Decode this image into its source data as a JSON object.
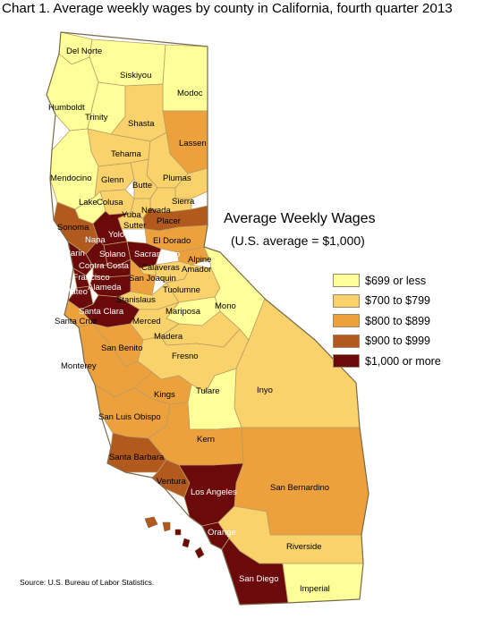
{
  "title": "Chart 1. Average weekly wages by county in California, fourth quarter 2013",
  "legend": {
    "title": "Average Weekly Wages",
    "subtitle": "(U.S. average = $1,000)",
    "items": [
      {
        "label": "$699 or less",
        "color": "#ffff99"
      },
      {
        "label": "$700 to $799",
        "color": "#f9d26b"
      },
      {
        "label": "$800 to $899",
        "color": "#eca13c"
      },
      {
        "label": "$900 to $999",
        "color": "#b2591e"
      },
      {
        "label": "$1,000 or more",
        "color": "#6b0a0a"
      }
    ]
  },
  "source": "Source: U.S. Bureau of Labor Statistics.",
  "counties": [
    {
      "name": "Del Norte",
      "class": 0
    },
    {
      "name": "Siskiyou",
      "class": 0
    },
    {
      "name": "Modoc",
      "class": 0
    },
    {
      "name": "Humboldt",
      "class": 0
    },
    {
      "name": "Trinity",
      "class": 0
    },
    {
      "name": "Shasta",
      "class": 1
    },
    {
      "name": "Lassen",
      "class": 2
    },
    {
      "name": "Tehama",
      "class": 1
    },
    {
      "name": "Plumas",
      "class": 1
    },
    {
      "name": "Mendocino",
      "class": 0
    },
    {
      "name": "Glenn",
      "class": 1
    },
    {
      "name": "Butte",
      "class": 1
    },
    {
      "name": "Sierra",
      "class": 1
    },
    {
      "name": "Lake",
      "class": 0
    },
    {
      "name": "Colusa",
      "class": 1
    },
    {
      "name": "Nevada",
      "class": 1
    },
    {
      "name": "Yuba",
      "class": 1
    },
    {
      "name": "Sutter",
      "class": 1
    },
    {
      "name": "Placer",
      "class": 3
    },
    {
      "name": "Sonoma",
      "class": 3
    },
    {
      "name": "Yolo",
      "class": 4
    },
    {
      "name": "Napa",
      "class": 4
    },
    {
      "name": "El Dorado",
      "class": 2
    },
    {
      "name": "Marin",
      "class": 4
    },
    {
      "name": "Solano",
      "class": 4
    },
    {
      "name": "Sacramento",
      "class": 4
    },
    {
      "name": "Alpine",
      "class": 2
    },
    {
      "name": "Contra Costa",
      "class": 4
    },
    {
      "name": "Calaveras",
      "class": 1
    },
    {
      "name": "Amador",
      "class": 1
    },
    {
      "name": "San Francisco",
      "class": 4
    },
    {
      "name": "San Joaquin",
      "class": 2
    },
    {
      "name": "San Mateo",
      "class": 4
    },
    {
      "name": "Alameda",
      "class": 4
    },
    {
      "name": "Stanislaus",
      "class": 1
    },
    {
      "name": "Tuolumne",
      "class": 1
    },
    {
      "name": "Mono",
      "class": 0
    },
    {
      "name": "Santa Clara",
      "class": 4
    },
    {
      "name": "Mariposa",
      "class": 0
    },
    {
      "name": "Santa Cruz",
      "class": 2
    },
    {
      "name": "Merced",
      "class": 1
    },
    {
      "name": "Madera",
      "class": 1
    },
    {
      "name": "San Benito",
      "class": 2
    },
    {
      "name": "Fresno",
      "class": 1
    },
    {
      "name": "Monterey",
      "class": 2
    },
    {
      "name": "Inyo",
      "class": 1
    },
    {
      "name": "Kings",
      "class": 2
    },
    {
      "name": "Tulare",
      "class": 0
    },
    {
      "name": "San Luis Obispo",
      "class": 2
    },
    {
      "name": "Kern",
      "class": 2
    },
    {
      "name": "Santa Barbara",
      "class": 3
    },
    {
      "name": "San Bernardino",
      "class": 2
    },
    {
      "name": "Ventura",
      "class": 3
    },
    {
      "name": "Los Angeles",
      "class": 4
    },
    {
      "name": "Orange",
      "class": 4
    },
    {
      "name": "Riverside",
      "class": 1
    },
    {
      "name": "San Diego",
      "class": 4
    },
    {
      "name": "Imperial",
      "class": 0
    }
  ]
}
